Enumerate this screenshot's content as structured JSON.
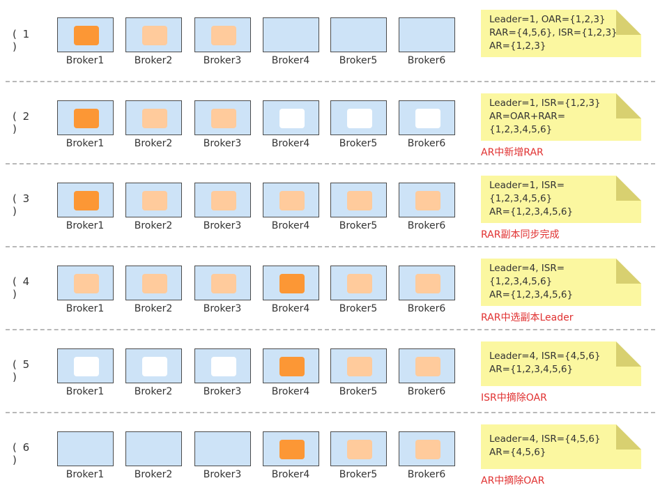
{
  "broker_names": [
    "Broker1",
    "Broker2",
    "Broker3",
    "Broker4",
    "Broker5",
    "Broker6"
  ],
  "colors": {
    "leader": "#fc9735",
    "follower": "#ffcb9c",
    "empty": "#ffffff",
    "broker_bg": "#cde3f7",
    "note_bg": "#fbf7a0",
    "caption": "#e03030"
  },
  "steps": [
    {
      "label": "( 1 )",
      "replicas": [
        "leader",
        "follower",
        "follower",
        "none",
        "none",
        "none"
      ],
      "note_lines": [
        "Leader=1, OAR={1,2,3}",
        "RAR={4,5,6}, ISR={1,2,3}",
        "AR={1,2,3}"
      ],
      "caption": ""
    },
    {
      "label": "( 2 )",
      "replicas": [
        "leader",
        "follower",
        "follower",
        "empty",
        "empty",
        "empty"
      ],
      "note_lines": [
        "Leader=1, ISR={1,2,3}",
        "AR=OAR+RAR=",
        "{1,2,3,4,5,6}"
      ],
      "caption": "AR中新增RAR"
    },
    {
      "label": "( 3 )",
      "replicas": [
        "leader",
        "follower",
        "follower",
        "follower",
        "follower",
        "follower"
      ],
      "note_lines": [
        "Leader=1, ISR=",
        "{1,2,3,4,5,6}",
        "AR={1,2,3,4,5,6}"
      ],
      "caption": "RAR副本同步完成"
    },
    {
      "label": "( 4 )",
      "replicas": [
        "follower",
        "follower",
        "follower",
        "leader",
        "follower",
        "follower"
      ],
      "note_lines": [
        "Leader=4,  ISR=",
        "{1,2,3,4,5,6}",
        "AR={1,2,3,4,5,6}"
      ],
      "caption": "RAR中选副本Leader"
    },
    {
      "label": "( 5 )",
      "replicas": [
        "empty",
        "empty",
        "empty",
        "leader",
        "follower",
        "follower"
      ],
      "note_lines": [
        "Leader=4, ISR={4,5,6}",
        "AR={1,2,3,4,5,6}"
      ],
      "caption": "ISR中摘除OAR"
    },
    {
      "label": "( 6 )",
      "replicas": [
        "none",
        "none",
        "none",
        "leader",
        "follower",
        "follower"
      ],
      "note_lines": [
        "Leader=4, ISR={4,5,6}",
        "AR={4,5,6}"
      ],
      "caption": "AR中摘除OAR"
    }
  ]
}
